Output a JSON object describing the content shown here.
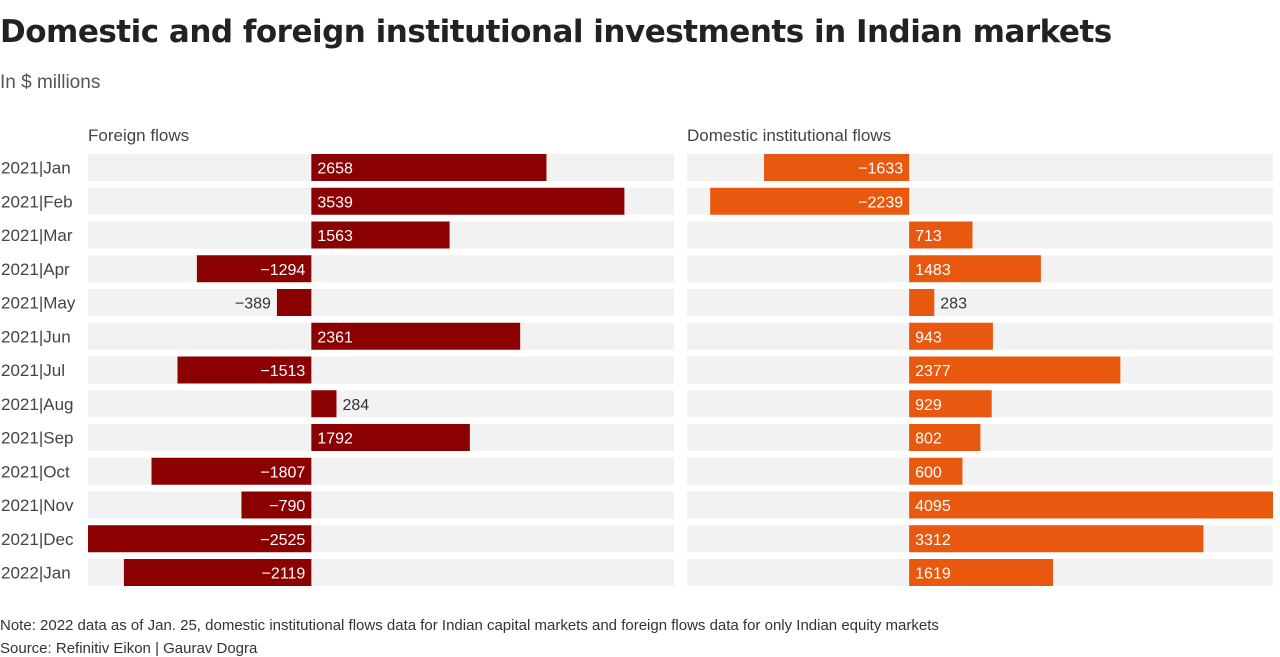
{
  "title": "Domestic and foreign institutional investments in Indian markets",
  "subtitle": "In $ millions",
  "note": "Note: 2022 data as of Jan. 25, domestic institutional flows data for Indian capital markets and foreign flows data for only Indian equity markets",
  "source": "Source: Refinitiv Eikon | Gaurav Dogra",
  "colors": {
    "foreign": "#8b0000",
    "domestic": "#e8590f",
    "row_background": "#f2f2f2",
    "label_inside": "#ffffff",
    "label_outside": "#333333"
  },
  "chart_data": {
    "type": "bar",
    "orientation": "horizontal",
    "categories": [
      "2021|Jan",
      "2021|Feb",
      "2021|Mar",
      "2021|Apr",
      "2021|May",
      "2021|Jun",
      "2021|Jul",
      "2021|Aug",
      "2021|Sep",
      "2021|Oct",
      "2021|Nov",
      "2021|Dec",
      "2022|Jan"
    ],
    "series": [
      {
        "name": "Foreign flows",
        "values": [
          2658,
          3539,
          1563,
          -1294,
          -389,
          2361,
          -1513,
          284,
          1792,
          -1807,
          -790,
          -2525,
          -2119
        ],
        "xlim": [
          -2525,
          4100
        ]
      },
      {
        "name": "Domestic institutional flows",
        "values": [
          -1633,
          -2239,
          713,
          1483,
          283,
          943,
          2377,
          929,
          802,
          600,
          4095,
          3312,
          1619
        ],
        "xlim": [
          -2500,
          4095
        ]
      }
    ],
    "grid": false,
    "legend": "none"
  }
}
